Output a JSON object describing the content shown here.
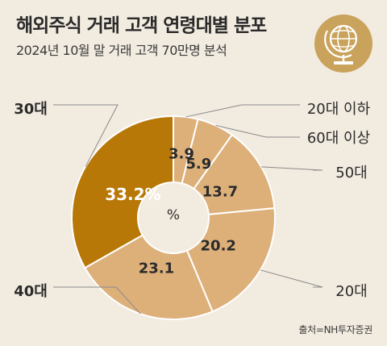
{
  "title": "해외주식 거래 고객 연령대별 분포",
  "subtitle": "2024년 10월 말 거래 고객 70만명 분석",
  "source": "출처=NH투자증권",
  "center_label": "%",
  "icon": "globe-icon",
  "colors": {
    "background": "#f2ebe0",
    "highlight": "#b87808",
    "slice": "#ddb07a",
    "leader": "#8a8a8a",
    "icon_bg": "#c9a25c"
  },
  "chart_data": {
    "type": "pie",
    "variant": "donut",
    "title": "해외주식 거래 고객 연령대별 분포",
    "unit": "%",
    "slices": [
      {
        "label": "20대 이하",
        "value": 3.9,
        "value_label": "3.9"
      },
      {
        "label": "60대 이상",
        "value": 5.9,
        "value_label": "5.9"
      },
      {
        "label": "50대",
        "value": 13.7,
        "value_label": "13.7"
      },
      {
        "label": "20대",
        "value": 20.2,
        "value_label": "20.2"
      },
      {
        "label": "40대",
        "value": 23.1,
        "value_label": "23.1"
      },
      {
        "label": "30대",
        "value": 33.2,
        "value_label": "33.2%",
        "highlight": true
      }
    ]
  }
}
